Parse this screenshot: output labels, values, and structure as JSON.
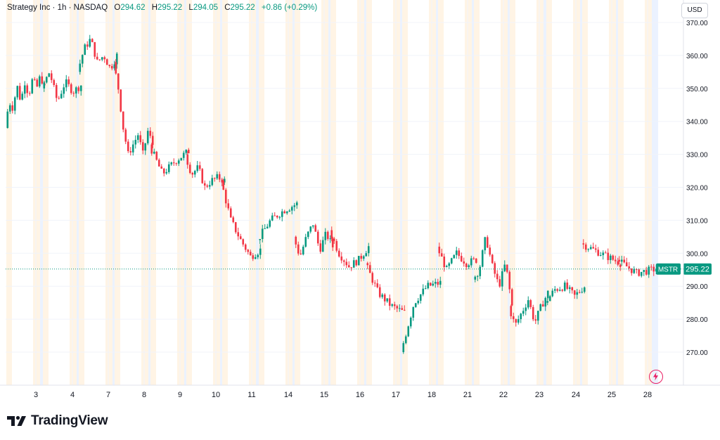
{
  "header": {
    "symbol_line": "Strategy Inc · 1h · NASDAQ",
    "open_label": "O",
    "open_value": "294.62",
    "high_label": "H",
    "high_value": "295.22",
    "low_label": "L",
    "low_value": "294.05",
    "close_label": "C",
    "close_value": "295.22",
    "change": "+0.86 (+0.29%)"
  },
  "currency": "USD",
  "brand": "TradingView",
  "colors": {
    "up": "#089981",
    "down": "#f23645",
    "price_line": "#089981",
    "ext_pre": "#fff4e5",
    "ext_post": "#ebf2ff",
    "accent": "#e91e63"
  },
  "icons": {
    "logo": "tradingview-logo-icon",
    "bolt": "lightning-icon"
  },
  "chart_data": {
    "type": "candlestick",
    "symbol": "MSTR",
    "last_price": 295.22,
    "ylim": [
      260,
      372
    ],
    "yticks": [
      270,
      280,
      290,
      300,
      310,
      320,
      330,
      340,
      350,
      360,
      370
    ],
    "ytick_labels": [
      "270.00",
      "280.00",
      "290.00",
      "300.00",
      "310.00",
      "320.00",
      "330.00",
      "340.00",
      "350.00",
      "360.00",
      "370.00"
    ],
    "xticks": [
      "3",
      "4",
      "7",
      "8",
      "9",
      "10",
      "11",
      "14",
      "15",
      "16",
      "17",
      "18",
      "21",
      "22",
      "23",
      "24",
      "25",
      "28"
    ],
    "days": [
      {
        "label": "3",
        "path": [
          338,
          346,
          344,
          351,
          346,
          352,
          348,
          353,
          350,
          354,
          350
        ]
      },
      {
        "label": "4",
        "path": [
          350,
          355,
          346,
          352,
          349,
          351
        ]
      },
      {
        "label": "7",
        "path": [
          355,
          362,
          365,
          358,
          360,
          356,
          360
        ]
      },
      {
        "label": "8",
        "path": [
          358,
          350,
          338,
          330,
          333,
          336,
          330,
          337,
          333
        ]
      },
      {
        "label": "9",
        "path": [
          333,
          324,
          328,
          331
        ]
      },
      {
        "label": "10",
        "path": [
          330,
          324,
          326,
          320,
          322,
          323,
          322
        ]
      },
      {
        "label": "11",
        "path": [
          322,
          310,
          304,
          299,
          301
        ]
      },
      {
        "label": "14",
        "path": [
          304,
          310,
          313,
          315
        ]
      },
      {
        "label": "15",
        "path": [
          305,
          299,
          305,
          309,
          301,
          306,
          302
        ]
      },
      {
        "label": "16",
        "path": [
          307,
          300,
          296,
          298,
          302
        ]
      },
      {
        "label": "17",
        "path": [
          297,
          288,
          284,
          282
        ]
      },
      {
        "label": "18",
        "path": [
          270,
          285,
          290,
          291
        ]
      },
      {
        "label": "21",
        "path": [
          302,
          295,
          300,
          297,
          298
        ]
      },
      {
        "label": "22",
        "path": [
          292,
          295,
          305,
          296,
          290,
          297,
          284
        ]
      },
      {
        "label": "23",
        "path": [
          284,
          278,
          282,
          286,
          279,
          284,
          288
        ]
      },
      {
        "label": "24",
        "path": [
          285,
          289,
          290,
          287,
          290
        ]
      },
      {
        "label": "25",
        "path": [
          303,
          300,
          297
        ]
      },
      {
        "label": "28",
        "path": [
          298,
          294,
          295.22
        ]
      }
    ]
  }
}
